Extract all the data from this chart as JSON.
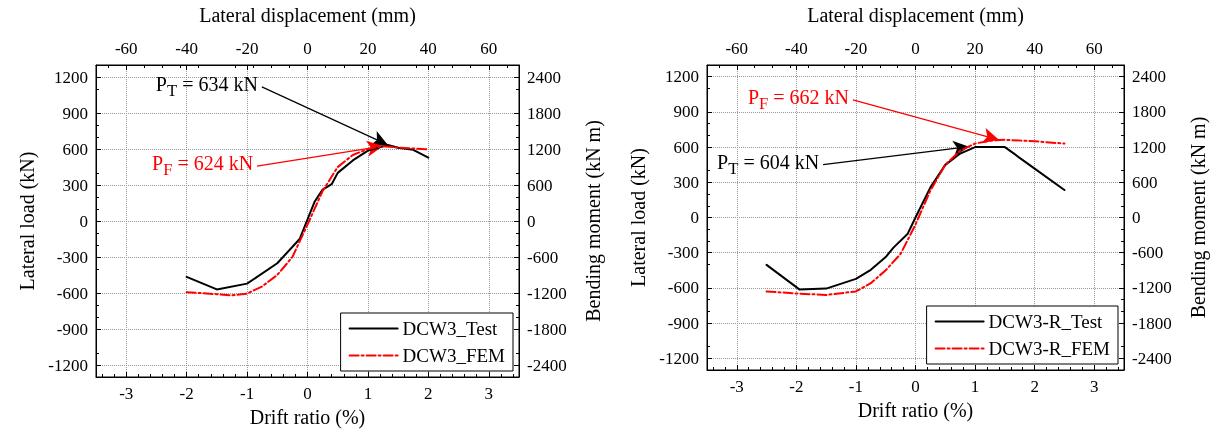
{
  "chart_data": [
    {
      "type": "line",
      "xlabel": "Drift ratio (%)",
      "ylabel": "Lateral load (kN)",
      "y2label": "Bending moment (kN m)",
      "x2label": "Lateral displacement (mm)",
      "xlim": [
        -3.5,
        3.5
      ],
      "xticks": [
        -3,
        -2,
        -1,
        0,
        1,
        2,
        3
      ],
      "ylim": [
        -1300,
        1300
      ],
      "yticks": [
        -1200,
        -900,
        -600,
        -300,
        0,
        300,
        600,
        900,
        1200
      ],
      "y2lim": [
        -2600,
        2600
      ],
      "y2ticks": [
        -2400,
        -1800,
        -1200,
        -600,
        0,
        600,
        1200,
        1800,
        2400
      ],
      "x2lim": [
        -70,
        70
      ],
      "x2ticks": [
        -60,
        -40,
        -20,
        0,
        20,
        40,
        60
      ],
      "grid": true,
      "legend": "bottom right",
      "marker": "none",
      "series": [
        {
          "name": "DCW3_Test",
          "color": "#000000",
          "line_style": "solid",
          "x": [
            -2,
            -1.5,
            -1,
            -0.5,
            -0.13,
            0.12,
            0.25,
            0.4,
            0.5,
            0.75,
            1,
            1.33,
            1.5,
            1.75,
            2
          ],
          "values": [
            -466,
            -570,
            -522,
            -352,
            -150,
            163,
            261,
            307,
            401,
            505,
            587,
            634,
            610,
            593,
            528
          ]
        },
        {
          "name": "DCW3_FEM",
          "color": "#ff0000",
          "line_style": "dashed",
          "x": [
            -2,
            -1.5,
            -1.25,
            -1,
            -0.75,
            -0.5,
            -0.25,
            0,
            0.25,
            0.5,
            0.75,
            1,
            1.25,
            1.5,
            2
          ],
          "values": [
            -593,
            -610,
            -620,
            -605,
            -545,
            -450,
            -300,
            -30,
            250,
            450,
            550,
            600,
            624,
            612,
            596
          ]
        }
      ],
      "annotations": [
        {
          "text": "P$_{T}$ = 634 kN",
          "x": 1.33,
          "y": 634
        },
        {
          "text": "P$_{F}$ = 624 kN",
          "x": 1.25,
          "y": 624
        }
      ]
    },
    {
      "type": "line",
      "xlabel": "Drift ratio (%)",
      "ylabel": "Lateral load (kN)",
      "y2label": "Bending moment (kN m)",
      "x2label": "Lateral displacement (mm)",
      "xlim": [
        -3.5,
        3.5
      ],
      "xticks": [
        -3,
        -2,
        -1,
        0,
        1,
        2,
        3
      ],
      "ylim": [
        -1300,
        1300
      ],
      "yticks": [
        -1200,
        -900,
        -600,
        -300,
        0,
        300,
        600,
        900,
        1200
      ],
      "y2lim": [
        -2600,
        2600
      ],
      "y2ticks": [
        -2400,
        -1800,
        -1200,
        -600,
        0,
        600,
        1200,
        1800,
        2400
      ],
      "x2lim": [
        -70,
        70
      ],
      "x2ticks": [
        -60,
        -40,
        -20,
        0,
        20,
        40,
        60
      ],
      "grid": true,
      "legend": "bottom right",
      "marker": "none",
      "series": [
        {
          "name": "DCW3-R_Test",
          "color": "#000000",
          "line_style": "solid",
          "x": [
            -2.5,
            -1.95,
            -1.5,
            -1,
            -0.75,
            -0.5,
            -0.37,
            -0.13,
            0,
            0.25,
            0.5,
            0.75,
            1,
            1.5,
            2,
            2.5
          ],
          "values": [
            -404,
            -613,
            -606,
            -523,
            -446,
            -337,
            -257,
            -138,
            0,
            257,
            449,
            545,
            600,
            600,
            417,
            234
          ]
        },
        {
          "name": "DCW3-R_FEM",
          "color": "#ff0000",
          "line_style": "dashed",
          "x": [
            -2.5,
            -2,
            -1.5,
            -1,
            -0.75,
            -0.5,
            -0.25,
            0,
            0.25,
            0.5,
            0.75,
            1,
            1.25,
            1.5,
            2,
            2.5
          ],
          "values": [
            -630,
            -648,
            -660,
            -630,
            -560,
            -450,
            -310,
            -60,
            230,
            450,
            570,
            630,
            655,
            662,
            650,
            630
          ]
        }
      ],
      "annotations": [
        {
          "text": "P$_{T}$ = 604 kN",
          "x": 0.9,
          "y": 604
        },
        {
          "text": "P$_{F}$ = 662 kN",
          "x": 1.4,
          "y": 662
        }
      ]
    }
  ]
}
